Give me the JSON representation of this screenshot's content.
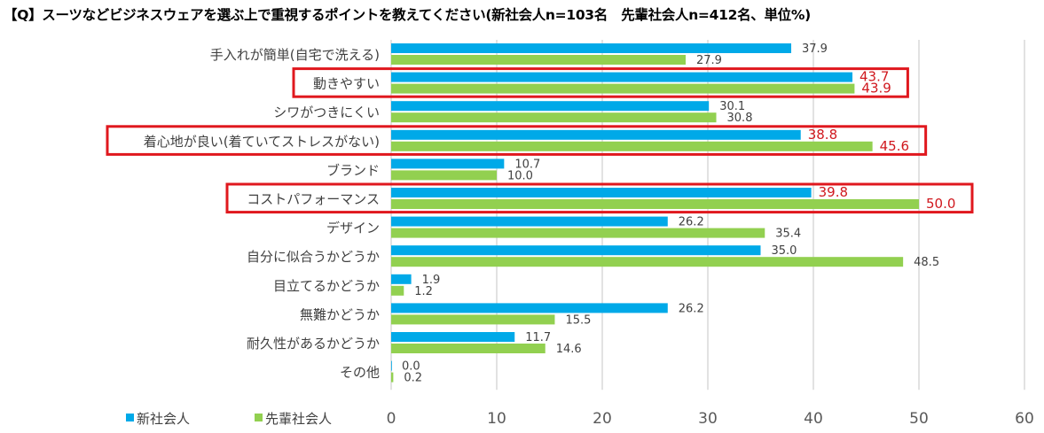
{
  "title": "【Q】スーツなどビジネスウェアを選ぶ上で重視するポイントを教えてください(新社会人n=103名　先輩社会人n=412名、単位%)",
  "colors": {
    "series1": "#00a9e8",
    "series2": "#92d050",
    "highlight": "#e0181e",
    "grid": "#d9d9d9"
  },
  "chart_data": {
    "type": "bar",
    "orientation": "horizontal",
    "title": "【Q】スーツなどビジネスウェアを選ぶ上で重視するポイントを教えてください(新社会人n=103名　先輩社会人n=412名、単位%)",
    "xlabel": "",
    "ylabel": "",
    "xlim": [
      0,
      60
    ],
    "xticks": [
      "0",
      "10",
      "20",
      "30",
      "40",
      "50",
      "60"
    ],
    "grid": true,
    "legend_position": "bottom-left",
    "categories": [
      "手入れが簡単(自宅で洗える)",
      "動きやすい",
      "シワがつきにくい",
      "着心地が良い(着ていてストレスがない)",
      "ブランド",
      "コストパフォーマンス",
      "デザイン",
      "自分に似合うかどうか",
      "目立てるかどうか",
      "無難かどうか",
      "耐久性があるかどうか",
      "その他"
    ],
    "series": [
      {
        "name": "新社会人",
        "values": [
          37.9,
          43.7,
          30.1,
          38.8,
          10.7,
          39.8,
          26.2,
          35.0,
          1.9,
          26.2,
          11.7,
          0.0
        ]
      },
      {
        "name": "先輩社会人",
        "values": [
          27.9,
          43.9,
          30.8,
          45.6,
          10.0,
          50.0,
          35.4,
          48.5,
          1.2,
          15.5,
          14.6,
          0.2
        ]
      }
    ],
    "highlighted_categories": [
      "動きやすい",
      "着心地が良い(着ていてストレスがない)",
      "コストパフォーマンス"
    ]
  }
}
